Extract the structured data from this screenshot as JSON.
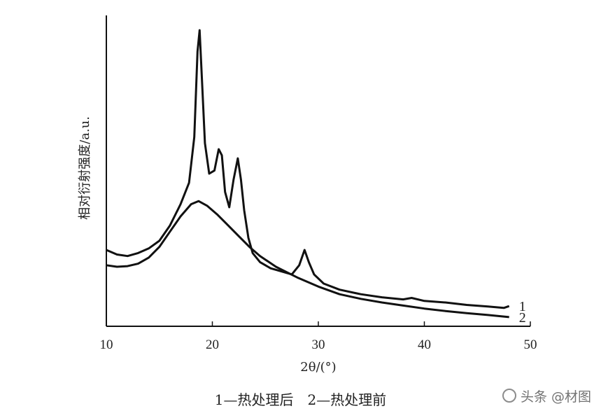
{
  "chart_data": {
    "type": "line",
    "xlabel": "2θ/(°)",
    "ylabel": "相对衍射强度/a.u.",
    "xlim": [
      10,
      50
    ],
    "ylim": [
      0,
      100
    ],
    "xticks": [
      10,
      20,
      30,
      40,
      50
    ],
    "grid": false,
    "series": [
      {
        "name": "1",
        "x": [
          10,
          11,
          12,
          13,
          14,
          15,
          16,
          17,
          17.8,
          18.3,
          18.6,
          18.8,
          19.0,
          19.3,
          19.7,
          20.2,
          20.6,
          20.9,
          21.2,
          21.6,
          22.0,
          22.4,
          22.7,
          23.0,
          23.4,
          23.8,
          24.5,
          25.5,
          26.5,
          27.5,
          28.2,
          28.7,
          29.1,
          29.6,
          30.5,
          32,
          34,
          36,
          38,
          38.8,
          40,
          42,
          44,
          46,
          47.5,
          48
        ],
        "y": [
          25,
          23.5,
          23,
          24,
          25.5,
          28,
          33,
          40,
          47,
          62,
          90,
          97,
          82,
          60,
          50,
          51,
          58,
          56,
          44,
          39,
          48,
          55,
          48,
          38,
          29,
          24,
          21,
          19,
          18,
          17,
          20,
          25,
          21,
          17,
          14,
          12,
          10.5,
          9.5,
          8.8,
          9.3,
          8.3,
          7.8,
          7,
          6.5,
          6,
          6.6
        ]
      },
      {
        "name": "2",
        "x": [
          10,
          11,
          12,
          13,
          14,
          15,
          16,
          17,
          18,
          18.7,
          19.5,
          20.5,
          21.5,
          22.5,
          23.5,
          24.5,
          26,
          28,
          30,
          32,
          34,
          36,
          38,
          40,
          42,
          44,
          46,
          48
        ],
        "y": [
          20,
          19.5,
          19.7,
          20.5,
          22.5,
          26,
          31,
          36,
          40,
          41,
          39.5,
          36.5,
          33,
          29.5,
          26,
          23,
          19.5,
          16,
          13,
          10.5,
          9,
          7.8,
          6.8,
          5.8,
          5,
          4.3,
          3.7,
          3
        ]
      }
    ]
  },
  "caption": "1—热处理后　2—热处理前",
  "watermark": "头条 @材图"
}
